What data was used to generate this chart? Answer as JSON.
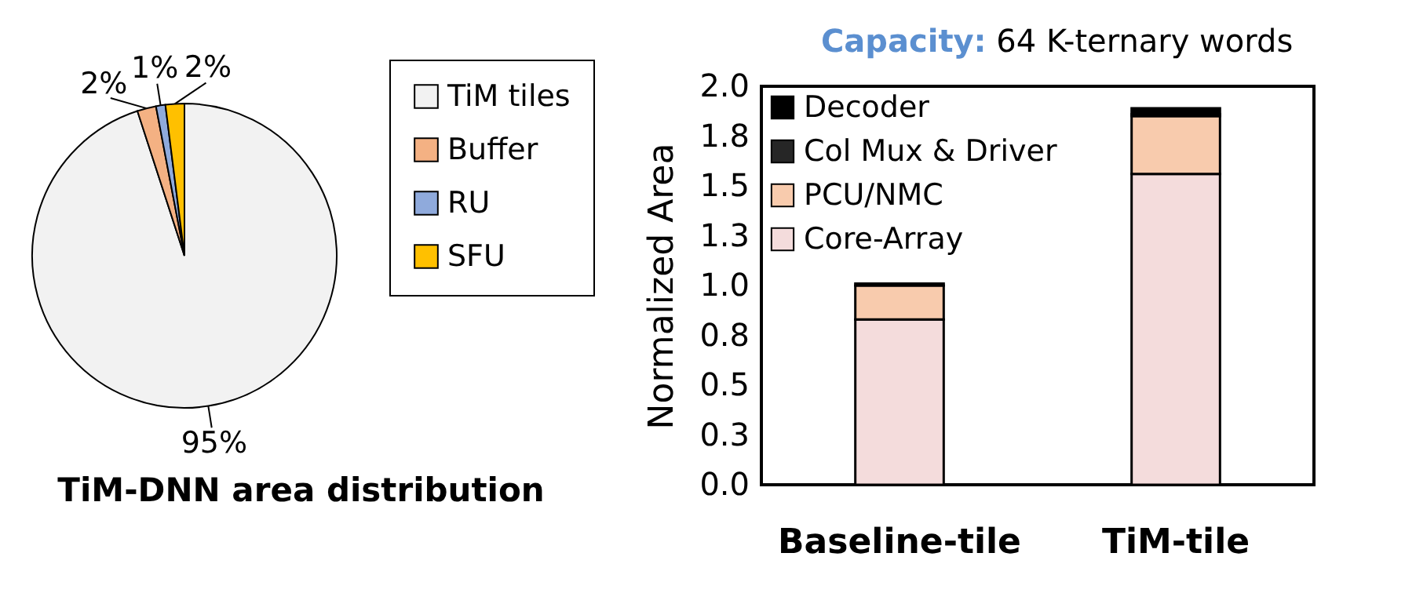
{
  "chart_data": [
    {
      "type": "pie",
      "title": "TiM-DNN area distribution",
      "categories": [
        "TiM tiles",
        "Buffer",
        "RU",
        "SFU"
      ],
      "values": [
        95,
        2,
        1,
        2
      ],
      "colors": [
        "#f2f2f2",
        "#f4b183",
        "#8faadc",
        "#ffc000"
      ],
      "value_labels": [
        "95%",
        "2%",
        "1%",
        "2%"
      ],
      "legend": "right"
    },
    {
      "type": "bar",
      "title": "Capacity: 64 K-ternary words",
      "ylabel": "Normalized Area",
      "categories": [
        "Baseline-tile",
        "TiM-tile"
      ],
      "stacked": true,
      "legend": "top left",
      "series": [
        {
          "name": "Core-Array",
          "color": "#f4dcdc",
          "values": [
            0.83,
            1.56
          ]
        },
        {
          "name": "PCU/NMC",
          "color": "#f8cbad",
          "values": [
            0.17,
            0.29
          ]
        },
        {
          "name": "Col Mux & Driver",
          "color": "#262626",
          "values": [
            null,
            0.01
          ]
        },
        {
          "name": "Decoder",
          "color": "#000000",
          "values": [
            0.01,
            0.03
          ]
        }
      ],
      "ylim": [
        0,
        2
      ],
      "yticks": [
        {
          "value": 0,
          "label": "0.0"
        },
        {
          "value": 0.25,
          "label": "0.3"
        },
        {
          "value": 0.5,
          "label": "0.5"
        },
        {
          "value": 0.75,
          "label": "0.8"
        },
        {
          "value": 1,
          "label": "1.0"
        },
        {
          "value": 1.25,
          "label": "1.3"
        },
        {
          "value": 1.5,
          "label": "1.5"
        },
        {
          "value": 1.75,
          "label": "1.8"
        },
        {
          "value": 2,
          "label": "2.0"
        }
      ]
    }
  ]
}
